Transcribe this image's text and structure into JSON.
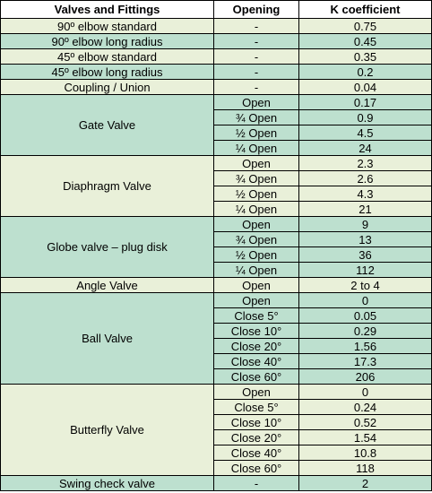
{
  "headers": [
    "Valves and Fittings",
    "Opening",
    "K coefficient"
  ],
  "groups": [
    {
      "name": "90º elbow standard",
      "tone": "light",
      "rows": [
        [
          "-",
          "0.75"
        ]
      ]
    },
    {
      "name": "90º elbow long radius",
      "tone": "dark",
      "rows": [
        [
          "-",
          "0.45"
        ]
      ]
    },
    {
      "name": "45º elbow standard",
      "tone": "light",
      "rows": [
        [
          "-",
          "0.35"
        ]
      ]
    },
    {
      "name": "45º elbow long radius",
      "tone": "dark",
      "rows": [
        [
          "-",
          "0.2"
        ]
      ]
    },
    {
      "name": "Coupling / Union",
      "tone": "light",
      "rows": [
        [
          "-",
          "0.04"
        ]
      ]
    },
    {
      "name": "Gate Valve",
      "tone": "dark",
      "rows": [
        [
          "Open",
          "0.17"
        ],
        [
          "¾ Open",
          "0.9"
        ],
        [
          "½ Open",
          "4.5"
        ],
        [
          "¼ Open",
          "24"
        ]
      ]
    },
    {
      "name": "Diaphragm Valve",
      "tone": "light",
      "rows": [
        [
          "Open",
          "2.3"
        ],
        [
          "¾ Open",
          "2.6"
        ],
        [
          "½ Open",
          "4.3"
        ],
        [
          "¼ Open",
          "21"
        ]
      ]
    },
    {
      "name": "Globe valve – plug disk",
      "tone": "dark",
      "rows": [
        [
          "Open",
          "9"
        ],
        [
          "¾ Open",
          "13"
        ],
        [
          "½ Open",
          "36"
        ],
        [
          "¼ Open",
          "112"
        ]
      ]
    },
    {
      "name": "Angle Valve",
      "tone": "light",
      "rows": [
        [
          "Open",
          "2 to 4"
        ]
      ]
    },
    {
      "name": "Ball Valve",
      "tone": "dark",
      "rows": [
        [
          "Open",
          "0"
        ],
        [
          "Close 5°",
          "0.05"
        ],
        [
          "Close 10°",
          "0.29"
        ],
        [
          "Close 20°",
          "1.56"
        ],
        [
          "Close 40°",
          "17.3"
        ],
        [
          "Close 60°",
          "206"
        ]
      ]
    },
    {
      "name": "Butterfly Valve",
      "tone": "light",
      "rows": [
        [
          "Open",
          "0"
        ],
        [
          "Close 5°",
          "0.24"
        ],
        [
          "Close 10°",
          "0.52"
        ],
        [
          "Close 20°",
          "1.54"
        ],
        [
          "Close 40°",
          "10.8"
        ],
        [
          "Close 60°",
          "118"
        ]
      ]
    },
    {
      "name": "Swing check valve",
      "tone": "dark",
      "rows": [
        [
          "-",
          "2"
        ]
      ]
    }
  ]
}
